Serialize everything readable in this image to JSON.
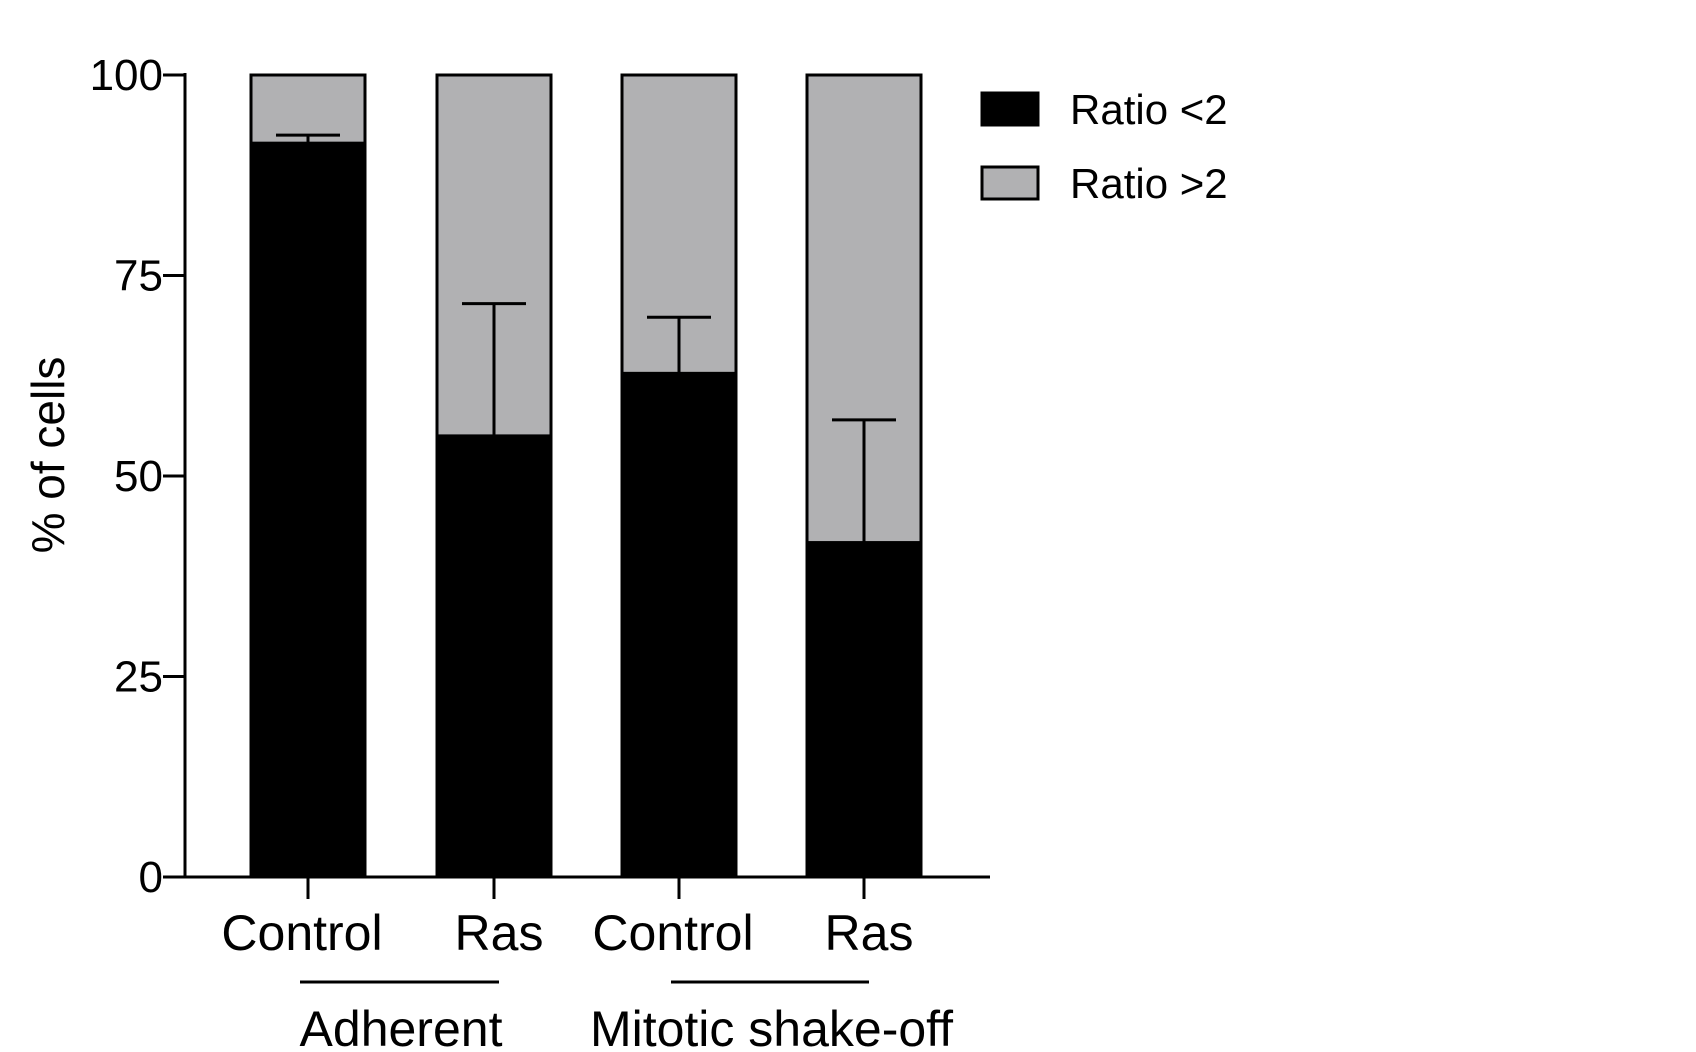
{
  "chart_data": {
    "type": "bar",
    "stacked": true,
    "categories": [
      "Control",
      "Ras",
      "Control",
      "Ras"
    ],
    "groups": [
      {
        "label": "Adherent",
        "categories": [
          0,
          1
        ]
      },
      {
        "label": "Mitotic shake-off",
        "categories": [
          2,
          3
        ]
      }
    ],
    "series": [
      {
        "name": "Ratio <2",
        "values": [
          91.5,
          55.0,
          62.8,
          41.7
        ],
        "error": [
          1.0,
          16.5,
          7.0,
          15.3
        ],
        "color": "#000000"
      },
      {
        "name": "Ratio >2",
        "values": [
          8.5,
          45.0,
          37.2,
          58.3
        ],
        "color": "#b1b1b3"
      }
    ],
    "title": "",
    "xlabel": "",
    "ylabel": "% of cells",
    "ylim": [
      0,
      100
    ],
    "yticks": [
      0,
      25,
      50,
      75,
      100
    ],
    "grid": false,
    "legend_position": "top-right"
  }
}
